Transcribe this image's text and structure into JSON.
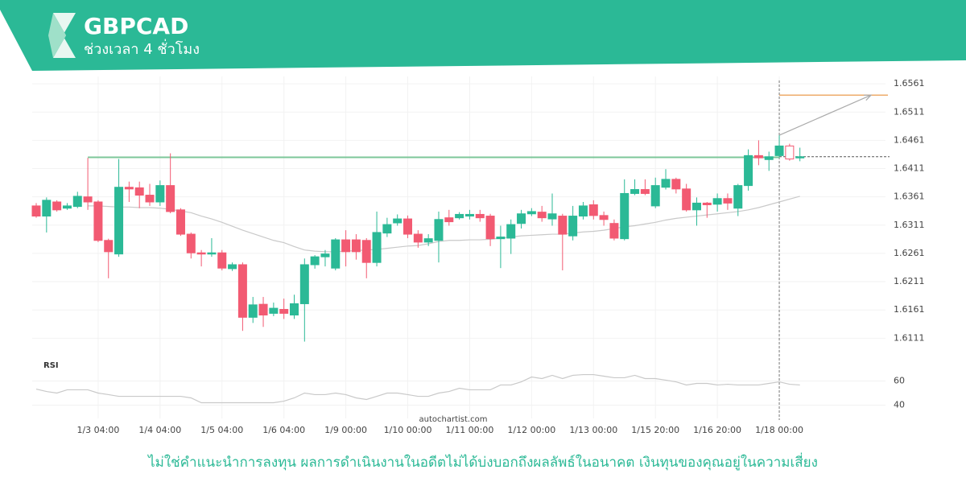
{
  "header": {
    "title": "GBPCAD",
    "subtitle": "ช่วงเวลา 4 ชั่วโมง"
  },
  "watermark": "autochartist.com",
  "disclaimer": "ไม่ใช่คำแนะนำการลงทุน ผลการดำเนินงานในอดีตไม่ได้บ่งบอกถึงผลลัพธ์ในอนาคต เงินทุนของคุณอยู่ในความเสี่ยง",
  "chart_data": [
    {
      "type": "candlestick",
      "up_color": "#2bb996",
      "down_color": "#f25a72",
      "grid": true,
      "categories": [
        null,
        null,
        null,
        null,
        null,
        null,
        "1/3 04:00",
        null,
        null,
        null,
        null,
        null,
        "1/4 04:00",
        null,
        null,
        null,
        null,
        null,
        "1/5 04:00",
        null,
        null,
        null,
        null,
        null,
        "1/6 04:00",
        null,
        null,
        null,
        null,
        null,
        "1/9 00:00",
        null,
        null,
        null,
        null,
        null,
        "1/10 00:00",
        null,
        null,
        null,
        null,
        null,
        "1/11 00:00",
        null,
        null,
        null,
        null,
        null,
        "1/12 00:00",
        null,
        null,
        null,
        null,
        null,
        "1/13 00:00",
        null,
        null,
        null,
        null,
        null,
        "1/15 20:00",
        null,
        null,
        null,
        null,
        null,
        "1/16 20:00",
        null,
        null,
        null,
        null,
        null,
        "1/18 00:00",
        null,
        null
      ],
      "open": [
        1.6345,
        1.6327,
        1.6352,
        1.6341,
        1.6344,
        1.6361,
        1.6352,
        1.6284,
        1.626,
        1.6378,
        1.6377,
        1.6364,
        1.6352,
        1.6381,
        1.6338,
        1.6295,
        1.6262,
        1.626,
        1.6262,
        1.6234,
        1.6241,
        1.6148,
        1.6171,
        1.6155,
        1.6162,
        1.6152,
        1.6172,
        1.6241,
        1.6255,
        1.6235,
        1.6285,
        1.6285,
        1.6284,
        1.6245,
        1.6297,
        1.6315,
        1.6322,
        1.6295,
        1.6281,
        1.6284,
        1.6324,
        1.6324,
        1.6327,
        1.633,
        1.6327,
        1.6287,
        1.6288,
        1.6314,
        1.6331,
        1.6334,
        1.6322,
        1.6327,
        1.6292,
        1.6327,
        1.6347,
        1.6328,
        1.6314,
        1.6287,
        1.6367,
        1.6374,
        1.6345,
        1.6378,
        1.6392,
        1.6375,
        1.6338,
        1.635,
        1.6348,
        1.6358,
        1.6341,
        1.6381,
        1.6434,
        1.6427,
        1.6434,
        1.6451,
        1.643
      ],
      "high": [
        1.635,
        1.636,
        1.6355,
        1.635,
        1.637,
        1.643,
        1.6355,
        1.6287,
        1.6428,
        1.6388,
        1.6388,
        1.6384,
        1.639,
        1.6438,
        1.6341,
        1.6298,
        1.6267,
        1.6288,
        1.6267,
        1.6245,
        1.6245,
        1.6184,
        1.6184,
        1.6174,
        1.6181,
        1.6188,
        1.6252,
        1.6258,
        1.6267,
        1.6288,
        1.6302,
        1.6295,
        1.6288,
        1.6335,
        1.6324,
        1.633,
        1.6328,
        1.6302,
        1.6295,
        1.6335,
        1.6338,
        1.6334,
        1.6338,
        1.6338,
        1.6331,
        1.631,
        1.6321,
        1.6338,
        1.6341,
        1.6345,
        1.6367,
        1.6331,
        1.6345,
        1.6352,
        1.6355,
        1.6335,
        1.6321,
        1.6392,
        1.6392,
        1.6392,
        1.6395,
        1.641,
        1.6395,
        1.6384,
        1.636,
        1.6352,
        1.6367,
        1.6367,
        1.6384,
        1.6445,
        1.6461,
        1.6441,
        1.647,
        1.6455,
        1.6448
      ],
      "low": [
        1.6324,
        1.6298,
        1.6335,
        1.6338,
        1.6341,
        1.6338,
        1.6281,
        1.6217,
        1.6255,
        1.6352,
        1.6341,
        1.6345,
        1.6345,
        1.6332,
        1.6292,
        1.6252,
        1.6238,
        1.6255,
        1.6231,
        1.623,
        1.6124,
        1.6138,
        1.6131,
        1.615,
        1.6145,
        1.6145,
        1.6105,
        1.6234,
        1.6238,
        1.6231,
        1.6238,
        1.625,
        1.6217,
        1.6238,
        1.629,
        1.631,
        1.6288,
        1.6271,
        1.6274,
        1.6245,
        1.631,
        1.6321,
        1.6321,
        1.6317,
        1.6274,
        1.6235,
        1.626,
        1.6305,
        1.6327,
        1.6317,
        1.631,
        1.6231,
        1.6284,
        1.6321,
        1.6321,
        1.631,
        1.6284,
        1.6284,
        1.6364,
        1.6364,
        1.6341,
        1.6374,
        1.6367,
        1.6335,
        1.631,
        1.6324,
        1.6335,
        1.6338,
        1.6327,
        1.6372,
        1.6417,
        1.6407,
        1.6431,
        1.6425,
        1.6424
      ],
      "close": [
        1.6327,
        1.6355,
        1.6338,
        1.6345,
        1.6362,
        1.6352,
        1.6284,
        1.6264,
        1.6378,
        1.6375,
        1.6364,
        1.6352,
        1.6381,
        1.6335,
        1.6295,
        1.6262,
        1.626,
        1.6262,
        1.6235,
        1.6241,
        1.6148,
        1.617,
        1.6152,
        1.6164,
        1.6155,
        1.6172,
        1.6241,
        1.6255,
        1.626,
        1.6285,
        1.6264,
        1.6264,
        1.6245,
        1.6298,
        1.6312,
        1.6322,
        1.6295,
        1.6281,
        1.6287,
        1.6321,
        1.6317,
        1.633,
        1.633,
        1.6324,
        1.6287,
        1.629,
        1.6312,
        1.6331,
        1.6335,
        1.6324,
        1.6331,
        1.6295,
        1.6327,
        1.6345,
        1.6328,
        1.6321,
        1.6288,
        1.6367,
        1.6374,
        1.6367,
        1.6381,
        1.6392,
        1.6375,
        1.6338,
        1.635,
        1.6347,
        1.6358,
        1.635,
        1.6381,
        1.6434,
        1.643,
        1.6432,
        1.6451,
        1.6428,
        1.6432
      ],
      "ma": {
        "color": "#c9c9c9",
        "values": [
          null,
          null,
          null,
          null,
          null,
          1.6345,
          1.6345,
          1.6344,
          1.6343,
          1.6343,
          1.6342,
          1.6342,
          1.6341,
          1.6339,
          1.6336,
          1.6333,
          1.6327,
          1.6322,
          1.6316,
          1.6309,
          1.6302,
          1.6296,
          1.629,
          1.6284,
          1.628,
          1.6273,
          1.6267,
          1.6265,
          1.6264,
          1.6264,
          1.6265,
          1.6266,
          1.6267,
          1.6268,
          1.627,
          1.6272,
          1.6274,
          1.6275,
          1.6278,
          1.6282,
          1.6284,
          1.6284,
          1.6285,
          1.6285,
          1.6286,
          1.6288,
          1.629,
          1.6292,
          1.6293,
          1.6294,
          1.6295,
          1.6295,
          1.6297,
          1.6299,
          1.63,
          1.6302,
          1.6305,
          1.6308,
          1.631,
          1.6313,
          1.6316,
          1.632,
          1.6323,
          1.6325,
          1.6327,
          1.6329,
          1.6331,
          1.6333,
          1.6335,
          1.6338,
          1.6342,
          1.6347,
          1.6352,
          1.6357,
          1.6362
        ]
      },
      "level": 1.6431,
      "level_color": "#7cc79a",
      "target": 1.6541,
      "target_color": "#e8903a",
      "ylim": [
        1.6083,
        1.6574
      ],
      "yticks": [
        1.6561,
        1.6511,
        1.6461,
        1.6411,
        1.6361,
        1.6311,
        1.6261,
        1.6211,
        1.6161,
        1.6111
      ]
    },
    {
      "type": "line",
      "title": "RSI",
      "color": "#c9c9c9",
      "values": [
        53.3,
        51.3,
        50,
        52.7,
        52.7,
        52.7,
        50,
        48.7,
        47.3,
        47.3,
        47.3,
        47.3,
        47.3,
        47.3,
        47.3,
        46,
        42,
        42,
        42,
        42,
        42,
        42,
        42,
        42,
        43.3,
        46,
        50,
        48.7,
        48.7,
        50,
        48.7,
        46,
        44.7,
        47.3,
        50,
        50,
        48.7,
        47.3,
        47.3,
        50,
        51.3,
        54,
        52.7,
        52.7,
        52.7,
        56.7,
        56.7,
        59.3,
        63.3,
        62,
        64.7,
        62,
        64.7,
        65.3,
        65.3,
        64,
        62.7,
        62.7,
        64.7,
        62,
        62,
        60.7,
        59.3,
        56.7,
        58,
        58,
        56.7,
        57.3,
        56.7,
        56.7,
        56.7,
        58,
        59.3,
        57.3,
        56.7
      ],
      "ylim": [
        29,
        79
      ],
      "yticks": [
        60,
        40
      ]
    }
  ]
}
